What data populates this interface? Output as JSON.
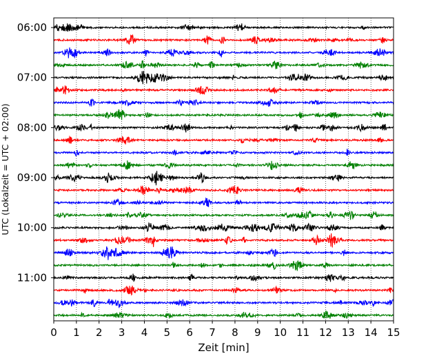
{
  "chart_data": {
    "type": "line",
    "title": "",
    "xlabel": "Zeit  [min]",
    "ylabel": "UTC (Lokalzeit = UTC + 02:00)",
    "xlim": [
      0,
      15
    ],
    "x_ticks": [
      0,
      1,
      2,
      3,
      4,
      5,
      6,
      7,
      8,
      9,
      10,
      11,
      12,
      13,
      14,
      15
    ],
    "x_tick_labels": [
      "0",
      "1",
      "2",
      "3",
      "4",
      "5",
      "6",
      "7",
      "8",
      "9",
      "10",
      "11",
      "12",
      "13",
      "14",
      "15"
    ],
    "y_tick_labels": [
      "06:00",
      "07:00",
      "08:00",
      "09:00",
      "10:00",
      "11:00"
    ],
    "grid": "vertical dotted",
    "trace_interval_minutes": 15,
    "colors": [
      "#000000",
      "#ff0000",
      "#0000ff",
      "#008000"
    ],
    "traces": [
      {
        "start": "06:00",
        "color": "#000000"
      },
      {
        "start": "06:15",
        "color": "#ff0000"
      },
      {
        "start": "06:30",
        "color": "#0000ff"
      },
      {
        "start": "06:45",
        "color": "#008000"
      },
      {
        "start": "07:00",
        "color": "#000000"
      },
      {
        "start": "07:15",
        "color": "#ff0000"
      },
      {
        "start": "07:30",
        "color": "#0000ff"
      },
      {
        "start": "07:45",
        "color": "#008000"
      },
      {
        "start": "08:00",
        "color": "#000000"
      },
      {
        "start": "08:15",
        "color": "#ff0000"
      },
      {
        "start": "08:30",
        "color": "#0000ff"
      },
      {
        "start": "08:45",
        "color": "#008000"
      },
      {
        "start": "09:00",
        "color": "#000000"
      },
      {
        "start": "09:15",
        "color": "#ff0000"
      },
      {
        "start": "09:30",
        "color": "#0000ff"
      },
      {
        "start": "09:45",
        "color": "#008000"
      },
      {
        "start": "10:00",
        "color": "#000000"
      },
      {
        "start": "10:15",
        "color": "#ff0000"
      },
      {
        "start": "10:30",
        "color": "#0000ff"
      },
      {
        "start": "10:45",
        "color": "#008000"
      },
      {
        "start": "11:00",
        "color": "#000000"
      },
      {
        "start": "11:15",
        "color": "#ff0000"
      },
      {
        "start": "11:30",
        "color": "#0000ff"
      },
      {
        "start": "11:45",
        "color": "#008000"
      }
    ]
  }
}
